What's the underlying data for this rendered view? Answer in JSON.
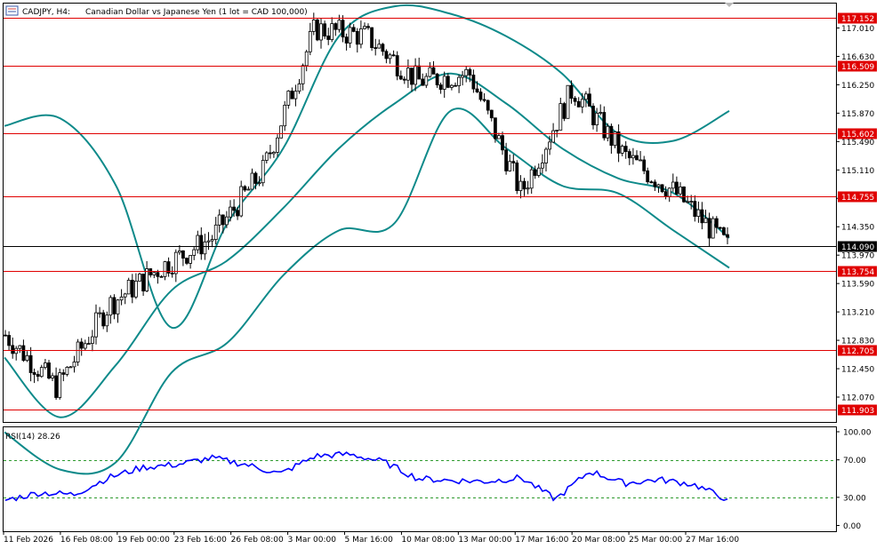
{
  "header": {
    "symbol": "CADJPY, H4:",
    "description": "Canadian Dollar vs Japanese Yen (1 lot = CAD 100,000)"
  },
  "price_axis": {
    "ticks": [
      "117.010",
      "116.630",
      "116.250",
      "115.870",
      "115.490",
      "115.110",
      "114.730",
      "114.350",
      "113.970",
      "113.590",
      "113.210",
      "112.830",
      "112.450",
      "112.070"
    ]
  },
  "current_price": "114.090",
  "horizontal_levels": [
    "117.152",
    "116.509",
    "115.602",
    "114.755",
    "113.754",
    "112.705",
    "111.903"
  ],
  "time_axis": {
    "labels": [
      "11 Feb 2026",
      "16 Feb 08:00",
      "19 Feb 00:00",
      "23 Feb 16:00",
      "26 Feb 08:00",
      "3 Mar 00:00",
      "5 Mar 16:00",
      "10 Mar 08:00",
      "13 Mar 00:00",
      "17 Mar 16:00",
      "20 Mar 08:00",
      "25 Mar 00:00",
      "27 Mar 16:00"
    ]
  },
  "rsi": {
    "label": "RSI(14) 28.26",
    "ticks": [
      "100.00",
      "70.00",
      "30.00",
      "0.00"
    ]
  },
  "colors": {
    "candle": "#000000",
    "bollinger": "#0e8a8a",
    "level_line": "#e00000",
    "level_label_bg": "#e00000",
    "current_line": "#000000",
    "current_label_bg": "#000000",
    "rsi_line": "#0000ff",
    "rsi_levels": "#2e9a2e"
  },
  "chart_data": {
    "type": "candlestick",
    "instrument": "CADJPY",
    "timeframe": "H4",
    "y_range": [
      111.75,
      117.3
    ],
    "approx_close_path": [
      {
        "t": "11 Feb 2026",
        "close": 112.9
      },
      {
        "t": "16 Feb 08:00",
        "close": 112.2
      },
      {
        "t": "19 Feb 00:00",
        "close": 113.3
      },
      {
        "t": "23 Feb 16:00",
        "close": 113.8
      },
      {
        "t": "26 Feb 08:00",
        "close": 114.2
      },
      {
        "t": "3 Mar 00:00",
        "close": 115.1
      },
      {
        "t": "5 Mar 16:00",
        "close": 117.0
      },
      {
        "t": "10 Mar 08:00",
        "close": 116.9
      },
      {
        "t": "13 Mar 00:00",
        "close": 116.3
      },
      {
        "t": "17 Mar 16:00",
        "close": 116.4
      },
      {
        "t": "18 Mar 20:00",
        "close": 114.8
      },
      {
        "t": "20 Mar 08:00",
        "close": 116.2
      },
      {
        "t": "25 Mar 00:00",
        "close": 115.3
      },
      {
        "t": "27 Mar 16:00",
        "close": 114.8
      },
      {
        "t": "last",
        "close": 114.09
      }
    ],
    "bollinger_bands": {
      "upper": [
        115.7,
        115.8,
        114.9,
        113.0,
        114.4,
        115.4,
        116.9,
        117.3,
        117.2,
        116.9,
        116.4,
        115.6,
        115.5,
        115.9
      ],
      "middle": [
        112.6,
        111.8,
        112.5,
        113.5,
        113.9,
        114.6,
        115.4,
        116.0,
        116.4,
        116.0,
        115.4,
        115.0,
        114.8,
        114.2
      ],
      "lower": [
        111.6,
        111.1,
        111.2,
        112.4,
        112.8,
        113.7,
        114.3,
        114.4,
        115.9,
        115.4,
        114.9,
        114.8,
        114.3,
        113.8
      ]
    },
    "rsi": {
      "period": 14,
      "last": 28.26,
      "approx_values": [
        27,
        35,
        33,
        51,
        62,
        65,
        72,
        65,
        55,
        74,
        76,
        68,
        50,
        48,
        47,
        51,
        28,
        58,
        45,
        49,
        44,
        28
      ],
      "levels": [
        70,
        30
      ],
      "range": [
        0,
        100
      ]
    }
  }
}
